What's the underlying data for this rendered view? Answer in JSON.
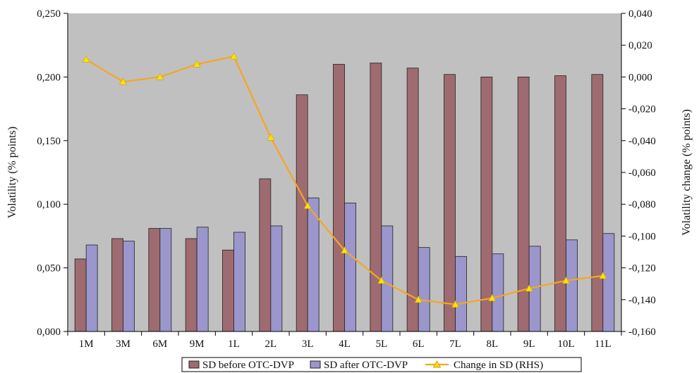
{
  "chart_data": {
    "type": "bar",
    "title": "",
    "xlabel": "",
    "ylabel": "Volatility (% points)",
    "y2label": "Volatility change (% points)",
    "categories": [
      "1M",
      "3M",
      "6M",
      "9M",
      "1L",
      "2L",
      "3L",
      "4L",
      "5L",
      "6L",
      "7L",
      "8L",
      "9L",
      "10L",
      "11L"
    ],
    "ylim": [
      0,
      0.25
    ],
    "y2lim": [
      -0.16,
      0.04
    ],
    "yticks": [
      "0,000",
      "0,050",
      "0,100",
      "0,150",
      "0,200",
      "0,250"
    ],
    "y2ticks": [
      "-0,160",
      "-0,140",
      "-0,120",
      "-0,100",
      "-0,080",
      "-0,060",
      "-0,040",
      "-0,020",
      "0,000",
      "0,020",
      "0,040"
    ],
    "grid": false,
    "legend_position": "bottom",
    "series": [
      {
        "name": "SD before OTC-DVP",
        "kind": "bar",
        "axis": "left",
        "color": "#9e6b70",
        "values": [
          0.057,
          0.073,
          0.081,
          0.073,
          0.064,
          0.12,
          0.186,
          0.21,
          0.211,
          0.207,
          0.202,
          0.2,
          0.2,
          0.201,
          0.202
        ]
      },
      {
        "name": "SD after OTC-DVP",
        "kind": "bar",
        "axis": "left",
        "color": "#9b96cb",
        "values": [
          0.068,
          0.071,
          0.081,
          0.082,
          0.078,
          0.083,
          0.105,
          0.101,
          0.083,
          0.066,
          0.059,
          0.061,
          0.067,
          0.072,
          0.077
        ]
      },
      {
        "name": "Change in SD (RHS)",
        "kind": "line",
        "axis": "right",
        "color": "#f5a623",
        "marker_color": "#f5e40a",
        "values": [
          0.011,
          -0.003,
          0.0,
          0.008,
          0.013,
          -0.038,
          -0.081,
          -0.109,
          -0.128,
          -0.14,
          -0.143,
          -0.139,
          -0.133,
          -0.128,
          -0.125
        ]
      }
    ],
    "colors": {
      "plot_background": "#c0c0c0"
    }
  }
}
